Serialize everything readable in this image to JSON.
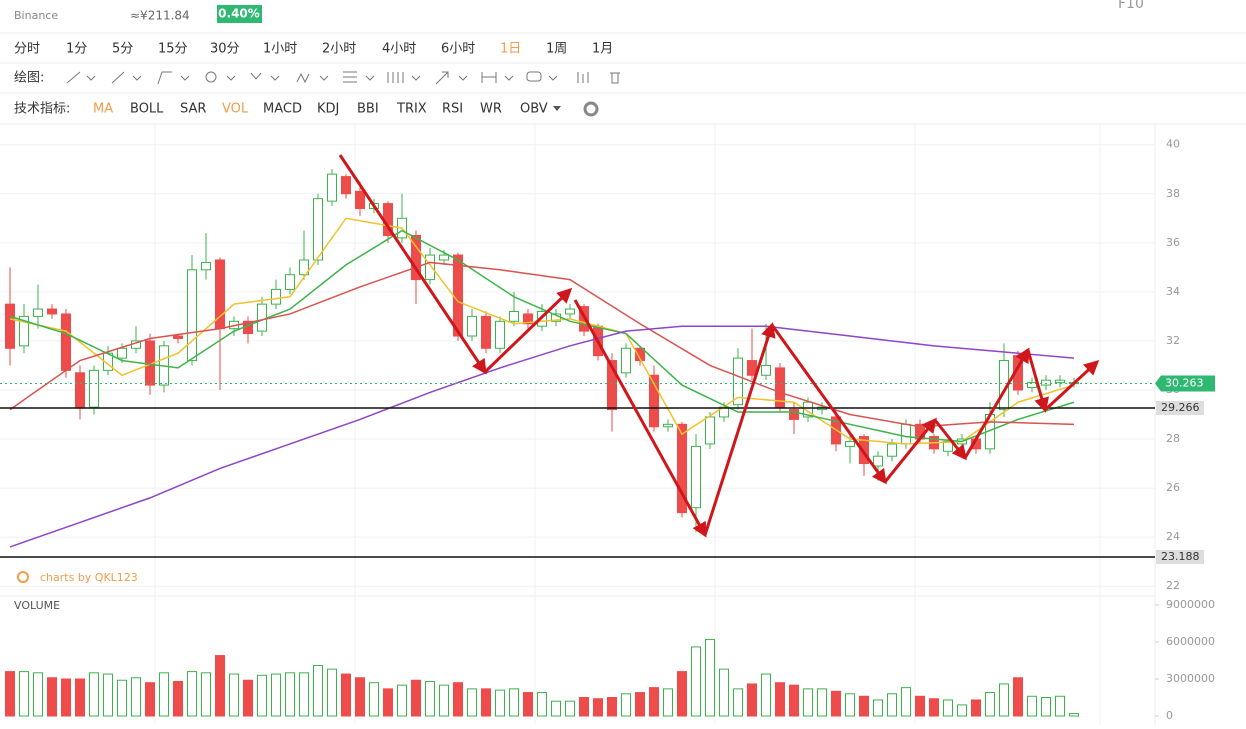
{
  "header": {
    "exchange": "Binance",
    "cny": "≈¥211.84",
    "change": "0.40%",
    "f10": "F10"
  },
  "toolbar": {
    "periods": [
      {
        "label": "分时"
      },
      {
        "label": "1分"
      },
      {
        "label": "5分"
      },
      {
        "label": "15分"
      },
      {
        "label": "30分"
      },
      {
        "label": "1小时"
      },
      {
        "label": "2小时"
      },
      {
        "label": "4小时"
      },
      {
        "label": "6小时"
      },
      {
        "label": "1日",
        "active": true
      },
      {
        "label": "1周"
      },
      {
        "label": "1月"
      }
    ],
    "draw_label": "绘图:",
    "indicators_label": "技术指标:",
    "indicators": [
      {
        "label": "MA",
        "active": true
      },
      {
        "label": "BOLL"
      },
      {
        "label": "SAR"
      },
      {
        "label": "VOL",
        "active": true
      },
      {
        "label": "MACD"
      },
      {
        "label": "KDJ"
      },
      {
        "label": "BBI"
      },
      {
        "label": "TRIX"
      },
      {
        "label": "RSI"
      },
      {
        "label": "WR"
      },
      {
        "label": "OBV"
      }
    ]
  },
  "chart_data": {
    "type": "candlestick",
    "watermark": "charts by QKL123",
    "volume_title": "VOLUME",
    "up_color": "#3cb44b",
    "down_color": "#ee4b4b",
    "candles": {
      "open": [
        33.5,
        31.8,
        33,
        33.3,
        33.1,
        30.7,
        29.3,
        30.8,
        31.3,
        31.7,
        32,
        30.2,
        32.2,
        31.2,
        34.9,
        35.3,
        32.5,
        32.8,
        32.4,
        33.5,
        34.1,
        34.7,
        35.3,
        37.7,
        38.7,
        38.1,
        37.4,
        37.6,
        36.2,
        36.3,
        34.5,
        35.3,
        35.5,
        32.2,
        33,
        31.7,
        32.8,
        33.1,
        32.6,
        32.8,
        33.1,
        33.4,
        32.6,
        31.2,
        30.7,
        31.7,
        30.6,
        28.5,
        28.6,
        25.2,
        27.8,
        28.9,
        29.4,
        31.2,
        30.6,
        30.9,
        29.2,
        28.9,
        29.2,
        28.9,
        27.7,
        28.1,
        26.9,
        27.3,
        27.8,
        28.6,
        28.1,
        27.5,
        27.8,
        28,
        27.6,
        29.2,
        31.4,
        30.1,
        30.2,
        30.3,
        30.3
      ],
      "close": [
        31.7,
        33,
        33.3,
        33.1,
        30.8,
        29.3,
        30.8,
        31.5,
        31.7,
        32,
        30.2,
        31.8,
        32.1,
        34.9,
        35.2,
        32.5,
        32.8,
        32.3,
        33.5,
        34.1,
        34.7,
        35.3,
        37.8,
        38.8,
        38,
        37.4,
        37.6,
        36.3,
        37,
        34.5,
        35.5,
        35.5,
        32.2,
        33,
        31.7,
        32.8,
        33.2,
        32.7,
        33.2,
        33.1,
        33.3,
        32.4,
        31.4,
        29.2,
        31.7,
        31.2,
        28.5,
        28.6,
        25,
        27.7,
        28.9,
        29.3,
        31.3,
        30.6,
        31,
        29.3,
        28.8,
        29.5,
        29.3,
        27.8,
        27.9,
        27,
        27.3,
        27.8,
        28.6,
        28,
        27.6,
        27.9,
        28,
        27.6,
        29,
        31.2,
        30,
        30.3,
        30.4,
        30.4,
        30.3
      ],
      "high": [
        35,
        33.5,
        34.3,
        33.5,
        33.3,
        31,
        31,
        31.8,
        31.9,
        32.6,
        32.3,
        32,
        32.3,
        35.5,
        36.4,
        35.4,
        33,
        33,
        33.8,
        34.5,
        35,
        36.5,
        38,
        39,
        38.8,
        38.5,
        37.8,
        37.7,
        38,
        36.5,
        35.8,
        35.7,
        35.6,
        33.3,
        33.2,
        33,
        34,
        33.3,
        33.5,
        33.3,
        33.5,
        33.5,
        32.7,
        31.5,
        31.9,
        31.8,
        31,
        28.8,
        28.7,
        28.2,
        29.1,
        29.5,
        31.7,
        32.5,
        32.7,
        31.1,
        29.5,
        29.7,
        29.5,
        29.2,
        28.2,
        28.2,
        27.5,
        28,
        28.8,
        28.8,
        28.2,
        28,
        28.2,
        28.1,
        29.5,
        31.9,
        31.6,
        30.5,
        30.6,
        30.6,
        30.5
      ],
      "low": [
        31,
        31.5,
        32.5,
        32.9,
        30.5,
        28.8,
        29,
        30.6,
        31.1,
        31.5,
        29.8,
        29.9,
        31.9,
        31,
        34.5,
        30,
        32.2,
        31.9,
        32.2,
        33.3,
        33.9,
        34.5,
        35.1,
        37.5,
        37.8,
        37.1,
        37.2,
        36,
        36,
        33.5,
        34.3,
        35.1,
        32,
        32,
        31.5,
        31.5,
        32.6,
        32.5,
        32.4,
        32.6,
        32.9,
        32.2,
        31.2,
        28.3,
        30.5,
        31,
        28.3,
        28.3,
        24.8,
        24.2,
        27.6,
        28.7,
        29.2,
        30.4,
        30.4,
        29.1,
        28.2,
        28.7,
        29,
        27.5,
        27,
        26.5,
        26.3,
        27.1,
        27.6,
        27.8,
        27.4,
        27.3,
        27.6,
        27.4,
        27.4,
        28.9,
        29.8,
        29.9,
        30,
        30.1,
        30.1
      ]
    },
    "ma": [
      {
        "color": "#f2c12e",
        "x": [
          0,
          4,
          8,
          12,
          16,
          20,
          24,
          28,
          32,
          36,
          40,
          44,
          48,
          52,
          56,
          60,
          64,
          68,
          72,
          76
        ],
        "values": [
          32.9,
          32.4,
          30.6,
          31.5,
          33.5,
          33.8,
          37,
          36.6,
          33.6,
          32.7,
          32.9,
          32.3,
          28.2,
          29.7,
          29.5,
          28,
          27.8,
          27.9,
          29.5,
          30.2
        ]
      },
      {
        "color": "#3cb44b",
        "x": [
          0,
          4,
          8,
          12,
          16,
          20,
          24,
          28,
          32,
          36,
          40,
          44,
          48,
          52,
          56,
          60,
          64,
          68,
          72,
          76
        ],
        "values": [
          33,
          32.3,
          31.2,
          30.9,
          32.4,
          33.3,
          35.1,
          36.5,
          35.3,
          33.8,
          32.8,
          32.3,
          30.2,
          29.1,
          29.1,
          28.6,
          28.1,
          27.9,
          28.8,
          29.5
        ]
      },
      {
        "color": "#d9534f",
        "x": [
          0,
          5,
          10,
          15,
          20,
          25,
          30,
          35,
          40,
          45,
          50,
          55,
          60,
          65,
          70,
          76
        ],
        "values": [
          29.2,
          31.2,
          32.1,
          32.5,
          33.1,
          34.2,
          35.2,
          34.9,
          34.5,
          32.7,
          31,
          29.9,
          29,
          28.5,
          28.7,
          28.6
        ]
      },
      {
        "color": "#8e44c8",
        "x": [
          0,
          5,
          10,
          15,
          20,
          25,
          30,
          35,
          40,
          44,
          48,
          54,
          60,
          66,
          72,
          76
        ],
        "values": [
          23.6,
          24.6,
          25.6,
          26.8,
          27.8,
          28.8,
          29.9,
          30.9,
          31.8,
          32.4,
          32.6,
          32.6,
          32.2,
          31.8,
          31.5,
          31.3
        ]
      }
    ],
    "hlines": [
      29.266,
      23.188
    ],
    "current_price": 30.263,
    "current_color": "#2eb872",
    "ylim": [
      21.6,
      40.6
    ],
    "yticks": [
      40,
      38,
      36,
      34,
      32,
      30,
      28,
      26,
      24,
      22
    ],
    "grid": true,
    "volume": {
      "values": [
        3600000,
        3600000,
        3500000,
        3100000,
        3000000,
        3000000,
        3500000,
        3400000,
        2900000,
        3100000,
        2700000,
        3500000,
        2800000,
        3600000,
        3500000,
        4900000,
        3400000,
        2900000,
        3300000,
        3400000,
        3500000,
        3500000,
        4100000,
        3800000,
        3400000,
        3100000,
        2700000,
        2200000,
        2500000,
        2900000,
        2800000,
        2500000,
        2700000,
        2200000,
        2200000,
        2100000,
        2200000,
        1900000,
        1900000,
        1200000,
        1200000,
        1500000,
        1400000,
        1500000,
        1800000,
        1900000,
        2300000,
        2200000,
        3600000,
        5600000,
        6200000,
        3800000,
        2200000,
        2600000,
        3400000,
        2700000,
        2500000,
        2200000,
        2200000,
        2000000,
        1800000,
        1600000,
        1300000,
        1800000,
        2300000,
        1600000,
        1400000,
        1300000,
        900000,
        1300000,
        1900000,
        2600000,
        3100000,
        1600000,
        1500000,
        1600000,
        200000
      ],
      "ylim": [
        0,
        9000000
      ],
      "yticks": [
        9000000,
        6000000,
        3000000,
        0
      ]
    }
  }
}
